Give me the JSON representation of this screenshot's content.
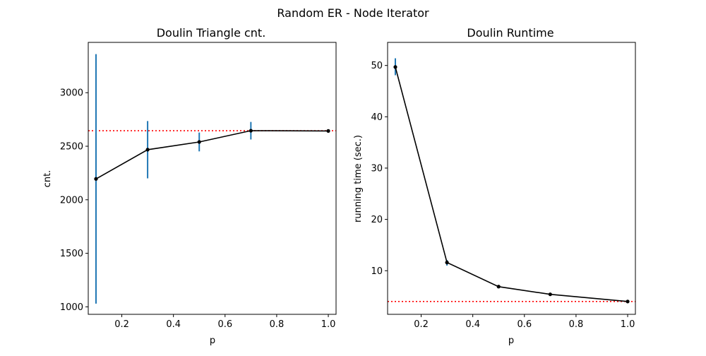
{
  "figure": {
    "suptitle": "Random ER - Node Iterator"
  },
  "chart_data": [
    {
      "type": "line",
      "title": "Doulin Triangle cnt.",
      "xlabel": "p",
      "ylabel": "cnt.",
      "xlim": [
        0.07,
        1.03
      ],
      "ylim": [
        930,
        3470
      ],
      "x_ticks": [
        0.2,
        0.4,
        0.6,
        0.8,
        1.0
      ],
      "x_tick_labels": [
        "0.2",
        "0.4",
        "0.6",
        "0.8",
        "1.0"
      ],
      "y_ticks": [
        1000,
        1500,
        2000,
        2500,
        3000
      ],
      "y_tick_labels": [
        "1000",
        "1500",
        "2000",
        "2500",
        "3000"
      ],
      "grid": false,
      "reference_line": {
        "y": 2645,
        "color": "#ff0000",
        "style": "dotted"
      },
      "series": [
        {
          "x": [
            0.1,
            0.3,
            0.5,
            0.7,
            1.0
          ],
          "y": [
            2195,
            2468,
            2540,
            2645,
            2643
          ],
          "err_low": [
            1030,
            2200,
            2452,
            2563,
            2643
          ],
          "err_high": [
            3360,
            2735,
            2628,
            2727,
            2643
          ],
          "color": "#000000",
          "err_color": "#1f77b4"
        }
      ]
    },
    {
      "type": "line",
      "title": "Doulin Runtime",
      "xlabel": "p",
      "ylabel": "running time (sec.)",
      "xlim": [
        0.07,
        1.03
      ],
      "ylim": [
        1.5,
        54.5
      ],
      "x_ticks": [
        0.2,
        0.4,
        0.6,
        0.8,
        1.0
      ],
      "x_tick_labels": [
        "0.2",
        "0.4",
        "0.6",
        "0.8",
        "1.0"
      ],
      "y_ticks": [
        10,
        20,
        30,
        40,
        50
      ],
      "y_tick_labels": [
        "10",
        "20",
        "30",
        "40",
        "50"
      ],
      "grid": false,
      "reference_line": {
        "y": 4.0,
        "color": "#ff0000",
        "style": "dotted"
      },
      "series": [
        {
          "x": [
            0.1,
            0.3,
            0.5,
            0.7,
            1.0
          ],
          "y": [
            49.7,
            11.6,
            6.9,
            5.4,
            4.0
          ],
          "err_low": [
            48.1,
            11.0,
            6.8,
            5.3,
            4.0
          ],
          "err_high": [
            51.4,
            12.1,
            7.0,
            5.5,
            4.0
          ],
          "color": "#000000",
          "err_color": "#1f77b4"
        }
      ]
    }
  ]
}
